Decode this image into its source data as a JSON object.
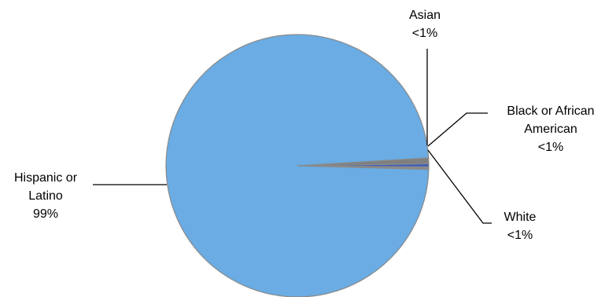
{
  "chart_data": {
    "type": "pie",
    "title": "",
    "slices": [
      {
        "label": "Hispanic or Latino",
        "value_label": "99%",
        "value": 98.6,
        "color": "#6aace3"
      },
      {
        "label": "White",
        "value_label": "<1%",
        "value": 0.3,
        "color": "#8a8a8a"
      },
      {
        "label": "Black or African American",
        "value_label": "<1%",
        "value": 0.4,
        "color": "#3f5fb8"
      },
      {
        "label": "Asian",
        "value_label": "<1%",
        "value": 0.7,
        "color": "#7f7f7f"
      }
    ],
    "legend": "none"
  }
}
